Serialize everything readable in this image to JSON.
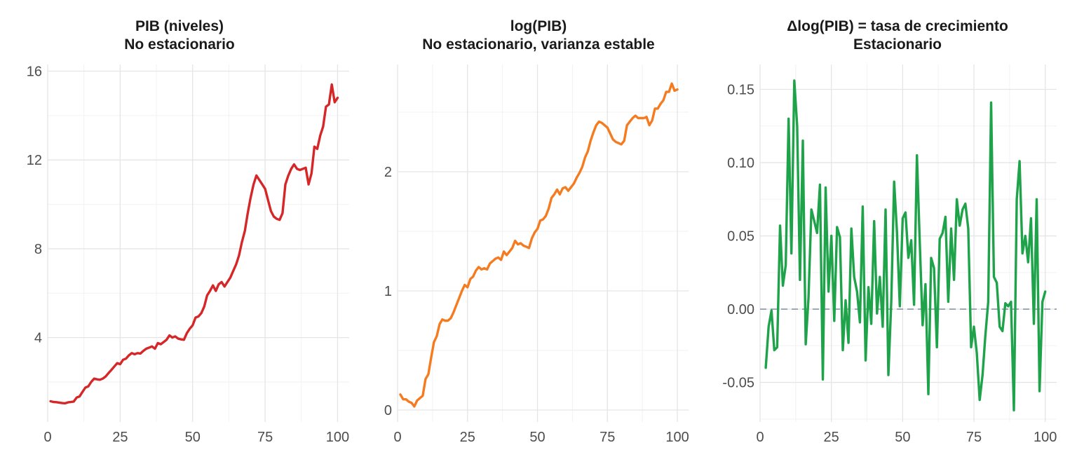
{
  "chart_data": [
    {
      "type": "line",
      "title": "PIB (niveles)",
      "subtitle": "No estacionario",
      "xlabel": "",
      "ylabel": "",
      "xlim": [
        0,
        104
      ],
      "ylim": [
        0.2,
        16.3
      ],
      "xticks": [
        0,
        25,
        50,
        75,
        100
      ],
      "xtick_labels": [
        "0",
        "25",
        "50",
        "75",
        "100"
      ],
      "yticks": [
        4,
        8,
        12,
        16
      ],
      "ytick_labels": [
        "4",
        "8",
        "12",
        "16"
      ],
      "grid": true,
      "color": "#d62728",
      "series": [
        {
          "x": [
            1,
            2,
            3,
            4,
            5,
            6,
            7,
            8,
            9,
            10,
            11,
            12,
            13,
            14,
            15,
            16,
            17,
            18,
            19,
            20,
            21,
            22,
            23,
            24,
            25,
            26,
            27,
            28,
            29,
            30,
            31,
            32,
            33,
            34,
            35,
            36,
            37,
            38,
            39,
            40,
            41,
            42,
            43,
            44,
            45,
            46,
            47,
            48,
            49,
            50,
            51,
            52,
            53,
            54,
            55,
            56,
            57,
            58,
            59,
            60,
            61,
            62,
            63,
            64,
            65,
            66,
            67,
            68,
            69,
            70,
            71,
            72,
            73,
            74,
            75,
            76,
            77,
            78,
            79,
            80,
            81,
            82,
            83,
            84,
            85,
            86,
            87,
            88,
            89,
            90,
            91,
            92,
            93,
            94,
            95,
            96,
            97,
            98,
            99,
            100
          ],
          "values": [
            1.13,
            1.1,
            1.09,
            1.07,
            1.05,
            1.04,
            1.08,
            1.1,
            1.12,
            1.3,
            1.35,
            1.55,
            1.75,
            1.8,
            2.0,
            2.15,
            2.12,
            2.1,
            2.15,
            2.25,
            2.4,
            2.55,
            2.7,
            2.85,
            2.8,
            3.0,
            3.05,
            3.2,
            3.3,
            3.25,
            3.3,
            3.28,
            3.4,
            3.5,
            3.55,
            3.6,
            3.5,
            3.75,
            3.7,
            3.8,
            3.9,
            4.1,
            4.0,
            4.05,
            3.95,
            3.92,
            3.9,
            4.2,
            4.4,
            4.55,
            4.9,
            4.95,
            5.1,
            5.4,
            5.9,
            6.1,
            6.35,
            6.1,
            6.4,
            6.5,
            6.3,
            6.5,
            6.7,
            7.0,
            7.3,
            7.7,
            8.3,
            8.8,
            9.6,
            10.3,
            10.9,
            11.3,
            11.1,
            10.9,
            10.7,
            10.2,
            9.7,
            9.45,
            9.35,
            9.3,
            9.6,
            10.9,
            11.3,
            11.6,
            11.8,
            11.6,
            11.55,
            11.6,
            11.65,
            10.9,
            11.4,
            12.6,
            12.5,
            13.1,
            13.5,
            14.4,
            14.5,
            15.4,
            14.6,
            14.8
          ]
        }
      ]
    },
    {
      "type": "line",
      "title": "log(PIB)",
      "subtitle": "No estacionario, varianza estable",
      "xlabel": "",
      "ylabel": "",
      "xlim": [
        0,
        104
      ],
      "ylim": [
        -0.1,
        2.9
      ],
      "xticks": [
        0,
        25,
        50,
        75,
        100
      ],
      "xtick_labels": [
        "0",
        "25",
        "50",
        "75",
        "100"
      ],
      "yticks": [
        0,
        1,
        2
      ],
      "ytick_labels": [
        "0",
        "1",
        "2"
      ],
      "grid": true,
      "color": "#f47b20",
      "series": [
        {
          "x": [
            1,
            2,
            3,
            4,
            5,
            6,
            7,
            8,
            9,
            10,
            11,
            12,
            13,
            14,
            15,
            16,
            17,
            18,
            19,
            20,
            21,
            22,
            23,
            24,
            25,
            26,
            27,
            28,
            29,
            30,
            31,
            32,
            33,
            34,
            35,
            36,
            37,
            38,
            39,
            40,
            41,
            42,
            43,
            44,
            45,
            46,
            47,
            48,
            49,
            50,
            51,
            52,
            53,
            54,
            55,
            56,
            57,
            58,
            59,
            60,
            61,
            62,
            63,
            64,
            65,
            66,
            67,
            68,
            69,
            70,
            71,
            72,
            73,
            74,
            75,
            76,
            77,
            78,
            79,
            80,
            81,
            82,
            83,
            84,
            85,
            86,
            87,
            88,
            89,
            90,
            91,
            92,
            93,
            94,
            95,
            96,
            97,
            98,
            99,
            100
          ],
          "values": [
            0.13,
            0.09,
            0.09,
            0.07,
            0.06,
            0.03,
            0.08,
            0.1,
            0.12,
            0.26,
            0.3,
            0.44,
            0.57,
            0.62,
            0.72,
            0.76,
            0.75,
            0.75,
            0.77,
            0.82,
            0.88,
            0.94,
            1.0,
            1.05,
            1.03,
            1.1,
            1.12,
            1.17,
            1.2,
            1.18,
            1.19,
            1.18,
            1.23,
            1.25,
            1.27,
            1.28,
            1.26,
            1.33,
            1.3,
            1.33,
            1.36,
            1.42,
            1.39,
            1.4,
            1.38,
            1.37,
            1.36,
            1.44,
            1.49,
            1.52,
            1.59,
            1.6,
            1.63,
            1.69,
            1.78,
            1.81,
            1.85,
            1.81,
            1.86,
            1.87,
            1.84,
            1.87,
            1.9,
            1.95,
            1.99,
            2.04,
            2.12,
            2.17,
            2.26,
            2.33,
            2.39,
            2.42,
            2.41,
            2.39,
            2.37,
            2.32,
            2.27,
            2.25,
            2.24,
            2.23,
            2.26,
            2.39,
            2.42,
            2.45,
            2.47,
            2.45,
            2.45,
            2.45,
            2.46,
            2.39,
            2.43,
            2.53,
            2.53,
            2.57,
            2.6,
            2.67,
            2.67,
            2.74,
            2.68,
            2.69
          ]
        }
      ]
    },
    {
      "type": "line",
      "title": "Δlog(PIB) = tasa de crecimiento",
      "subtitle": "Estacionario",
      "xlabel": "",
      "ylabel": "",
      "xlim": [
        0,
        104
      ],
      "ylim": [
        -0.077,
        0.167
      ],
      "xticks": [
        0,
        25,
        50,
        75,
        100
      ],
      "xtick_labels": [
        "0",
        "25",
        "50",
        "75",
        "100"
      ],
      "yticks": [
        -0.05,
        0.0,
        0.05,
        0.1,
        0.15
      ],
      "ytick_labels": [
        "-0.05",
        "0.00",
        "0.05",
        "0.10",
        "0.15"
      ],
      "grid": true,
      "color": "#1fa34a",
      "reference_line": {
        "y": 0,
        "style": "dashed",
        "color": "#8797ad"
      },
      "series": [
        {
          "x": [
            2,
            3,
            4,
            5,
            6,
            7,
            8,
            9,
            10,
            11,
            12,
            13,
            14,
            15,
            16,
            17,
            18,
            19,
            20,
            21,
            22,
            23,
            24,
            25,
            26,
            27,
            28,
            29,
            30,
            31,
            32,
            33,
            34,
            35,
            36,
            37,
            38,
            39,
            40,
            41,
            42,
            43,
            44,
            45,
            46,
            47,
            48,
            49,
            50,
            51,
            52,
            53,
            54,
            55,
            56,
            57,
            58,
            59,
            60,
            61,
            62,
            63,
            64,
            65,
            66,
            67,
            68,
            69,
            70,
            71,
            72,
            73,
            74,
            75,
            76,
            77,
            78,
            79,
            80,
            81,
            82,
            83,
            84,
            85,
            86,
            87,
            88,
            89,
            90,
            91,
            92,
            93,
            94,
            95,
            96,
            97,
            98,
            99,
            100
          ],
          "values": [
            -0.04,
            -0.012,
            -0.001,
            -0.028,
            -0.026,
            0.057,
            0.016,
            0.03,
            0.13,
            0.038,
            0.156,
            0.125,
            0.02,
            0.115,
            -0.024,
            0.008,
            0.068,
            0.06,
            0.052,
            0.085,
            -0.048,
            0.083,
            0.012,
            0.05,
            -0.008,
            0.056,
            0.049,
            -0.028,
            0.006,
            -0.023,
            0.055,
            0.022,
            0.012,
            -0.009,
            0.07,
            -0.035,
            0.015,
            -0.01,
            0.06,
            -0.003,
            0.022,
            -0.012,
            0.068,
            -0.045,
            0.005,
            0.087,
            0.053,
            0.002,
            0.062,
            0.066,
            0.035,
            0.047,
            0.003,
            0.105,
            0.045,
            -0.011,
            0.017,
            -0.058,
            0.035,
            0.028,
            -0.026,
            0.048,
            0.052,
            0.063,
            0.005,
            0.055,
            0.02,
            0.075,
            0.057,
            0.068,
            0.072,
            0.055,
            -0.026,
            -0.012,
            -0.03,
            -0.062,
            -0.045,
            -0.018,
            0.005,
            0.141,
            0.022,
            0.018,
            -0.012,
            -0.015,
            0.004,
            0.002,
            0.005,
            -0.069,
            0.075,
            0.101,
            0.038,
            0.05,
            0.032,
            0.062,
            -0.01,
            0.075,
            -0.056,
            0.005,
            0.012
          ]
        }
      ]
    }
  ]
}
